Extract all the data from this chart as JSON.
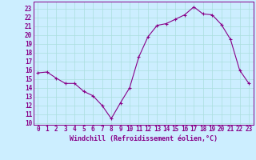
{
  "x": [
    0,
    1,
    2,
    3,
    4,
    5,
    6,
    7,
    8,
    9,
    10,
    11,
    12,
    13,
    14,
    15,
    16,
    17,
    18,
    19,
    20,
    21,
    22,
    23
  ],
  "y": [
    15.7,
    15.8,
    15.1,
    14.5,
    14.5,
    13.6,
    13.1,
    12.0,
    10.5,
    12.3,
    14.0,
    17.5,
    19.8,
    21.1,
    21.3,
    21.8,
    22.3,
    23.2,
    22.4,
    22.3,
    21.2,
    19.5,
    16.0,
    14.5
  ],
  "line_color": "#880088",
  "marker": "+",
  "marker_color": "#880088",
  "bg_color": "#cceeff",
  "grid_color": "#aadddd",
  "xlabel": "Windchill (Refroidissement éolien,°C)",
  "ylabel_ticks": [
    10,
    11,
    12,
    13,
    14,
    15,
    16,
    17,
    18,
    19,
    20,
    21,
    22,
    23
  ],
  "xlim": [
    -0.5,
    23.5
  ],
  "ylim": [
    9.8,
    23.8
  ],
  "tick_color": "#880088",
  "label_color": "#880088",
  "tick_fontsize": 5.5,
  "xlabel_fontsize": 6.0
}
